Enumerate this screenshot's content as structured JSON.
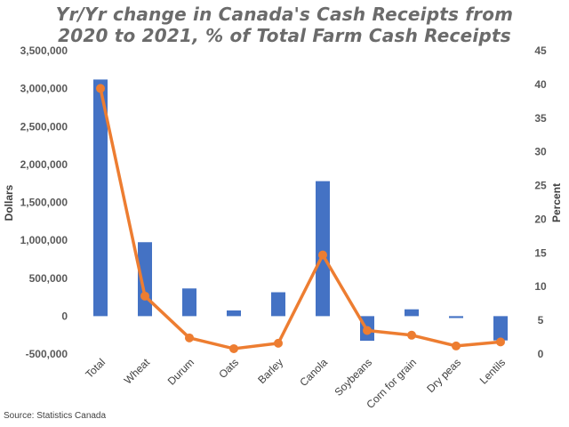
{
  "chart_data": {
    "type": "bar",
    "title_line1": "Yr/Yr change in Canada's  Cash Receipts from",
    "title_line2": "2020 to 2021, % of Total Farm Cash Receipts",
    "ylabel": "Dollars",
    "y2label": "Percent",
    "source": "Source: Statistics Canada",
    "categories": [
      "Total",
      "Wheat",
      "Durum",
      "Oats",
      "Barley",
      "Canola",
      "Soybeans",
      "Corn for grain",
      "Dry peas",
      "Lentils"
    ],
    "series": [
      {
        "type": "bar",
        "axis": "left",
        "color": "#4472C4",
        "values": [
          3120000,
          975000,
          365000,
          75000,
          315000,
          1780000,
          -325000,
          90000,
          -25000,
          -320000
        ]
      },
      {
        "type": "line",
        "axis": "right",
        "color": "#ED7D31",
        "values": [
          39.4,
          8.6,
          2.4,
          0.8,
          1.6,
          14.7,
          3.5,
          2.8,
          1.2,
          1.8
        ]
      }
    ],
    "ylim": [
      -500000,
      3500000
    ],
    "yticks": [
      3500000,
      3000000,
      2500000,
      2000000,
      1500000,
      1000000,
      500000,
      0,
      -500000
    ],
    "ytick_labels": [
      "3,500,000",
      "3,000,000",
      "2,500,000",
      "2,000,000",
      "1,500,000",
      "1,000,000",
      "500,000",
      "0",
      "-500,000"
    ],
    "y2lim": [
      0,
      45
    ],
    "y2ticks": [
      45,
      40,
      35,
      30,
      25,
      20,
      15,
      10,
      5,
      0
    ],
    "y2tick_labels": [
      "45",
      "40",
      "35",
      "30",
      "25",
      "20",
      "15",
      "10",
      "5",
      "0"
    ],
    "grid": false,
    "legend": "none"
  }
}
